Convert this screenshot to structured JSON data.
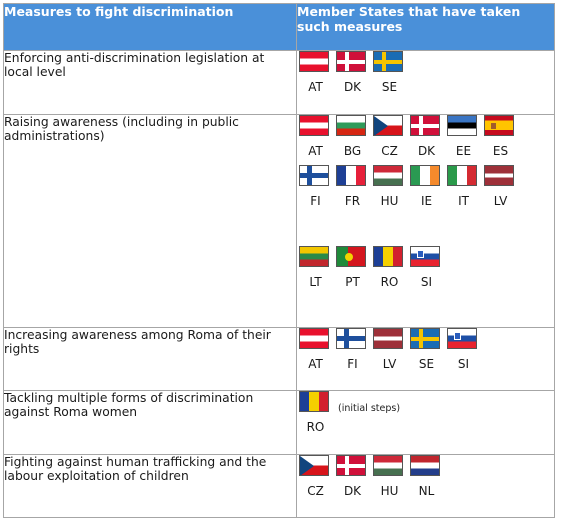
{
  "header": {
    "col1": "Measures to fight discrimination",
    "col2": "Member States that have taken such measures"
  },
  "rows": [
    {
      "measure": "Enforcing anti-discrimination legislation at local level",
      "flag_rows": [
        [
          "AT",
          "DK",
          "SE"
        ]
      ]
    },
    {
      "measure": "Raising awareness (including in public administrations)",
      "flag_rows": [
        [
          "AT",
          "BG",
          "CZ",
          "DK",
          "EE",
          "ES"
        ],
        [
          "FI",
          "FR",
          "HU",
          "IE",
          "IT",
          "LV"
        ],
        [
          "LT",
          "PT",
          "RO",
          "SI"
        ]
      ]
    },
    {
      "measure": "Increasing awareness among Roma of their rights",
      "flag_rows": [
        [
          "AT",
          "FI",
          "LV",
          "SE",
          "SI"
        ]
      ]
    },
    {
      "measure": "Tackling multiple forms of discrimination against Roma women",
      "flag_rows": [
        [
          "RO"
        ]
      ],
      "note": "(initial steps)"
    },
    {
      "measure": "Fighting against human trafficking and the labour exploitation of children",
      "flag_rows": [
        [
          "CZ",
          "DK",
          "HU",
          "NL"
        ]
      ]
    }
  ],
  "colors": {
    "header_bg": "#4a90d9",
    "header_text": "#ffffff",
    "border": "#a6a6a6"
  }
}
